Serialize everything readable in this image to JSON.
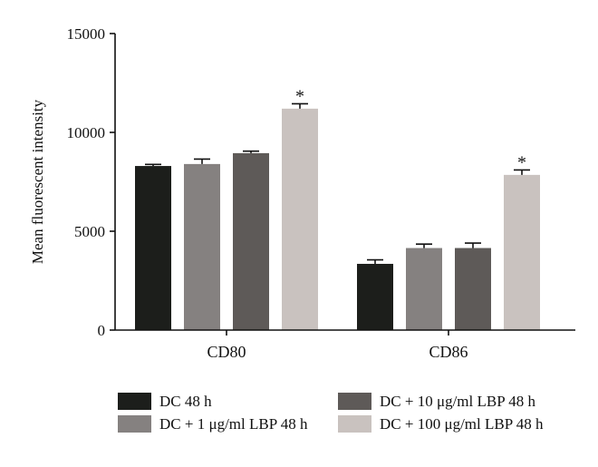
{
  "chart_data": {
    "type": "bar",
    "title": "",
    "xlabel": "",
    "ylabel": "Mean fluorescent intensity",
    "ylim": [
      0,
      15000
    ],
    "yticks": [
      0,
      5000,
      10000,
      15000
    ],
    "grid": false,
    "legend_position": "bottom",
    "categories": [
      "CD80",
      "CD86"
    ],
    "series": [
      {
        "name": "DC 48 h",
        "color": "#1c1e1b",
        "values": [
          8300,
          3350
        ],
        "errors": [
          80,
          200
        ],
        "annotations": [
          "",
          ""
        ]
      },
      {
        "name": "DC + 1 μg/ml LBP 48 h",
        "color": "#858180",
        "values": [
          8400,
          4150
        ],
        "errors": [
          250,
          200
        ],
        "annotations": [
          "",
          ""
        ]
      },
      {
        "name": "DC + 10 μg/ml LBP 48 h",
        "color": "#5e5a58",
        "values": [
          8950,
          4150
        ],
        "errors": [
          100,
          250
        ],
        "annotations": [
          "",
          ""
        ]
      },
      {
        "name": "DC + 100 μg/ml LBP 48 h",
        "color": "#c9c2bf",
        "values": [
          11200,
          7850
        ],
        "errors": [
          250,
          250
        ],
        "annotations": [
          "*",
          "*"
        ]
      }
    ]
  }
}
